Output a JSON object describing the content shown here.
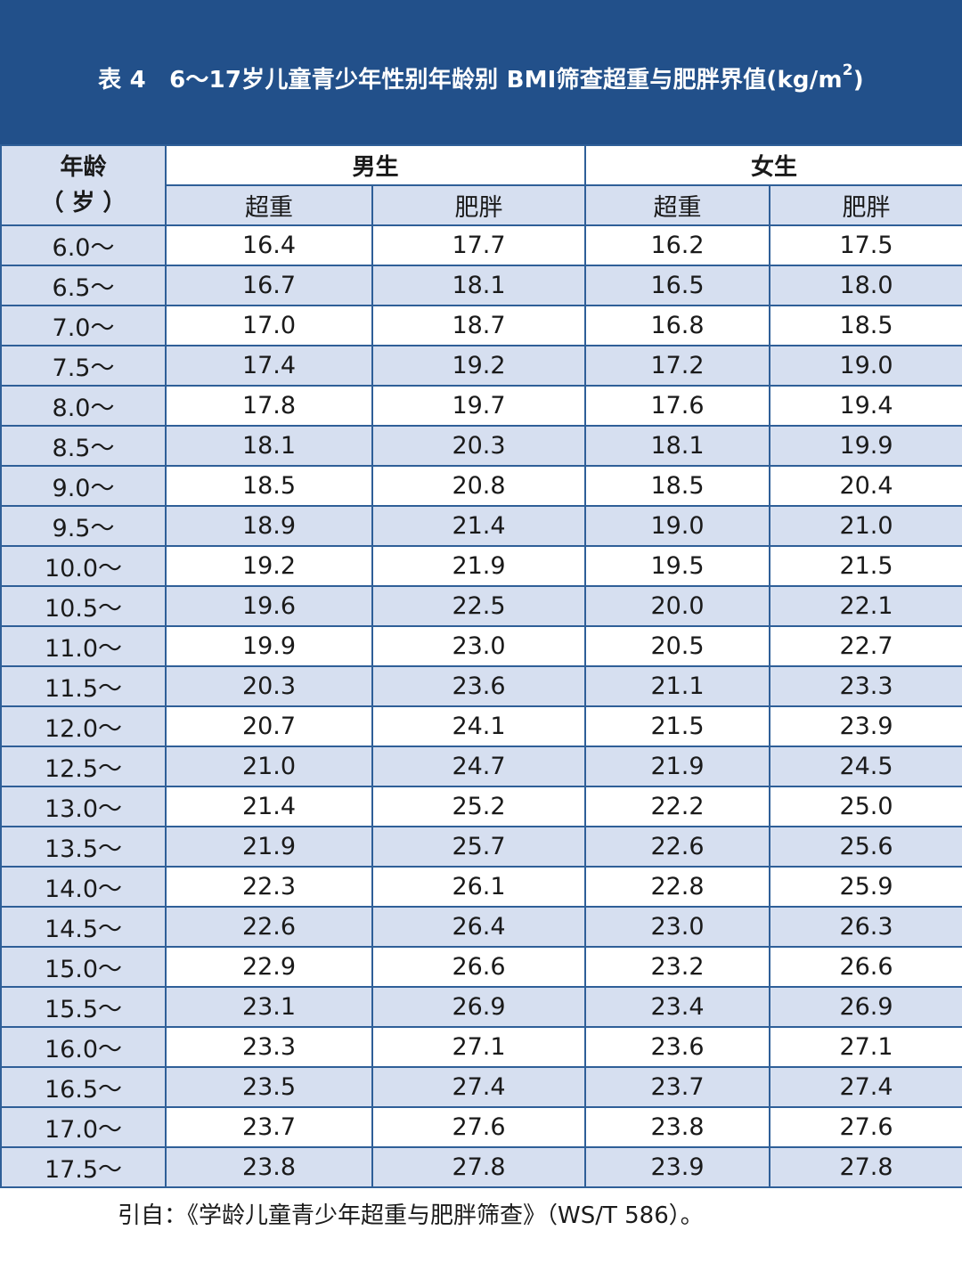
{
  "title": {
    "main": "表 4　6～17岁儿童青少年性别年龄别 BMI筛查超重与肥胖界值(kg/m",
    "sup": "2",
    "tail": ")"
  },
  "header": {
    "age_line1": "年龄",
    "age_line2": "（ 岁 ）",
    "male": "男生",
    "female": "女生",
    "overweight": "超重",
    "obese": "肥胖"
  },
  "rows": [
    {
      "age": "6.0～",
      "m_ow": "16.4",
      "m_ob": "17.7",
      "f_ow": "16.2",
      "f_ob": "17.5"
    },
    {
      "age": "6.5～",
      "m_ow": "16.7",
      "m_ob": "18.1",
      "f_ow": "16.5",
      "f_ob": "18.0"
    },
    {
      "age": "7.0～",
      "m_ow": "17.0",
      "m_ob": "18.7",
      "f_ow": "16.8",
      "f_ob": "18.5"
    },
    {
      "age": "7.5～",
      "m_ow": "17.4",
      "m_ob": "19.2",
      "f_ow": "17.2",
      "f_ob": "19.0"
    },
    {
      "age": "8.0～",
      "m_ow": "17.8",
      "m_ob": "19.7",
      "f_ow": "17.6",
      "f_ob": "19.4"
    },
    {
      "age": "8.5～",
      "m_ow": "18.1",
      "m_ob": "20.3",
      "f_ow": "18.1",
      "f_ob": "19.9"
    },
    {
      "age": "9.0～",
      "m_ow": "18.5",
      "m_ob": "20.8",
      "f_ow": "18.5",
      "f_ob": "20.4"
    },
    {
      "age": "9.5～",
      "m_ow": "18.9",
      "m_ob": "21.4",
      "f_ow": "19.0",
      "f_ob": "21.0"
    },
    {
      "age": "10.0～",
      "m_ow": "19.2",
      "m_ob": "21.9",
      "f_ow": "19.5",
      "f_ob": "21.5"
    },
    {
      "age": "10.5～",
      "m_ow": "19.6",
      "m_ob": "22.5",
      "f_ow": "20.0",
      "f_ob": "22.1"
    },
    {
      "age": "11.0～",
      "m_ow": "19.9",
      "m_ob": "23.0",
      "f_ow": "20.5",
      "f_ob": "22.7"
    },
    {
      "age": "11.5～",
      "m_ow": "20.3",
      "m_ob": "23.6",
      "f_ow": "21.1",
      "f_ob": "23.3"
    },
    {
      "age": "12.0～",
      "m_ow": "20.7",
      "m_ob": "24.1",
      "f_ow": "21.5",
      "f_ob": "23.9"
    },
    {
      "age": "12.5～",
      "m_ow": "21.0",
      "m_ob": "24.7",
      "f_ow": "21.9",
      "f_ob": "24.5"
    },
    {
      "age": "13.0～",
      "m_ow": "21.4",
      "m_ob": "25.2",
      "f_ow": "22.2",
      "f_ob": "25.0"
    },
    {
      "age": "13.5～",
      "m_ow": "21.9",
      "m_ob": "25.7",
      "f_ow": "22.6",
      "f_ob": "25.6"
    },
    {
      "age": "14.0～",
      "m_ow": "22.3",
      "m_ob": "26.1",
      "f_ow": "22.8",
      "f_ob": "25.9"
    },
    {
      "age": "14.5～",
      "m_ow": "22.6",
      "m_ob": "26.4",
      "f_ow": "23.0",
      "f_ob": "26.3"
    },
    {
      "age": "15.0～",
      "m_ow": "22.9",
      "m_ob": "26.6",
      "f_ow": "23.2",
      "f_ob": "26.6"
    },
    {
      "age": "15.5～",
      "m_ow": "23.1",
      "m_ob": "26.9",
      "f_ow": "23.4",
      "f_ob": "26.9"
    },
    {
      "age": "16.0～",
      "m_ow": "23.3",
      "m_ob": "27.1",
      "f_ow": "23.6",
      "f_ob": "27.1"
    },
    {
      "age": "16.5～",
      "m_ow": "23.5",
      "m_ob": "27.4",
      "f_ow": "23.7",
      "f_ob": "27.4"
    },
    {
      "age": "17.0～",
      "m_ow": "23.7",
      "m_ob": "27.6",
      "f_ow": "23.8",
      "f_ob": "27.6"
    },
    {
      "age": "17.5～",
      "m_ow": "23.8",
      "m_ob": "27.8",
      "f_ow": "23.9",
      "f_ob": "27.8"
    }
  ],
  "footer": "引自：《学龄儿童青少年超重与肥胖筛查》（WS/T 586）。",
  "colors": {
    "title_bg": "#22508a",
    "row_alt": "#d6dff0",
    "border": "#2f5f98"
  }
}
